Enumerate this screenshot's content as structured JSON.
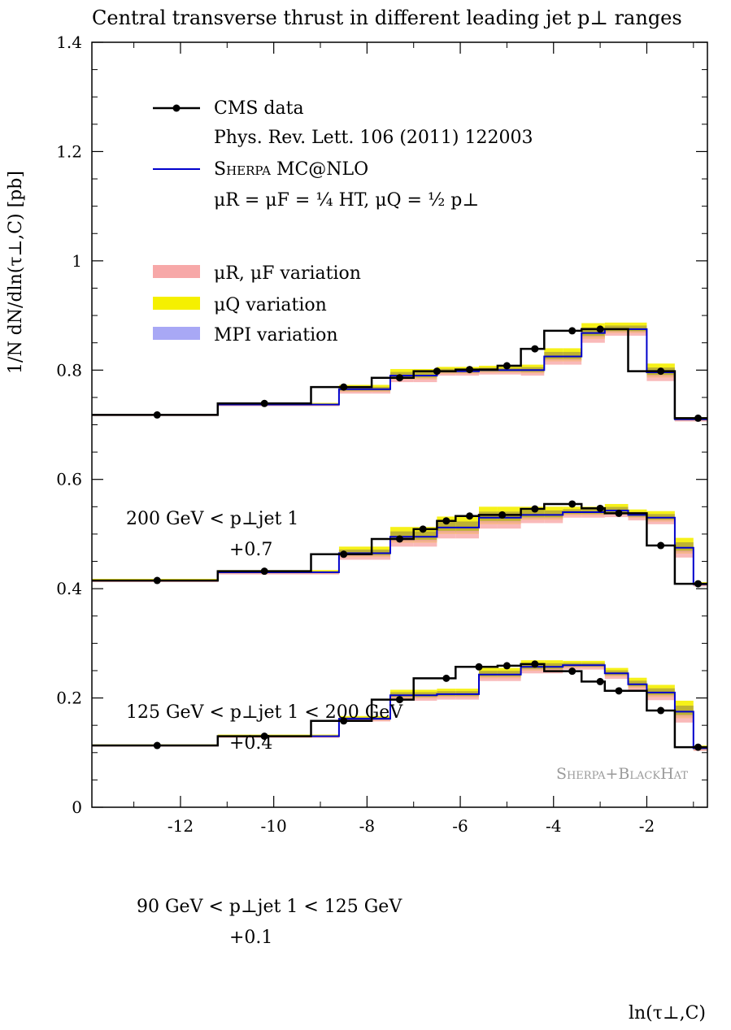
{
  "chart_data": {
    "type": "line",
    "title": "Central transverse thrust in different leading jet p⊥ ranges",
    "xlabel": "ln(τ⊥,C)",
    "ylabel": "1/N dN/dln(τ⊥,C) [pb]",
    "xlim": [
      -13.9,
      -0.7
    ],
    "ylim": [
      0,
      1.4
    ],
    "x_ticks": [
      -12,
      -10,
      -8,
      -6,
      -4,
      -2
    ],
    "x_tick_labels": [
      "-12",
      "-10",
      "-8",
      "-6",
      "-4",
      "-2"
    ],
    "y_ticks": [
      0,
      0.2,
      0.4,
      0.6,
      0.8,
      1,
      1.2,
      1.4
    ],
    "y_tick_labels": [
      "0",
      "0.2",
      "0.4",
      "0.6",
      "0.8",
      "1",
      "1.2",
      "1.4"
    ],
    "bin_edges": [
      -13.9,
      -11.2,
      -9.2,
      -8.6,
      -7.9,
      -7.5,
      -7.0,
      -6.5,
      -6.1,
      -5.6,
      -5.2,
      -4.7,
      -4.2,
      -3.8,
      -3.4,
      -2.9,
      -2.4,
      -2.0,
      -1.4,
      -1.0,
      -0.7
    ],
    "legend": {
      "data_label": "CMS data",
      "data_sub": "Phys. Rev. Lett. 106 (2011) 122003",
      "mc_label": "Sherpa MC@NLO",
      "mc_sub": "μR = μF = ¼ HT,   μQ = ½ p⊥",
      "band_mu_rf": "μR, μF variation",
      "band_mu_q": "μQ variation",
      "band_mpi": "MPI variation"
    },
    "watermark": "Sherpa+BlackHat",
    "colors": {
      "data": "#000000",
      "mc": "#0000cc",
      "band_mu_rf": "#f7a8a8",
      "band_mu_q": "#f5f000",
      "band_mpi": "#a8a8f5",
      "band_overlap": "#a09040"
    },
    "series": [
      {
        "name": "200 GeV < p⊥jet 1",
        "offset_label": "+0.7",
        "data": {
          "x": [
            -12.5,
            -10.2,
            -8.5,
            -7.3,
            -6.5,
            -5.8,
            -5.0,
            -4.4,
            -3.6,
            -3.0,
            -1.7,
            -0.9
          ],
          "y": [
            0.718,
            0.739,
            0.769,
            0.786,
            0.798,
            0.801,
            0.808,
            0.839,
            0.872,
            0.875,
            0.798,
            0.712
          ]
        },
        "mc_values": [
          0.718,
          0.737,
          0.737,
          0.765,
          0.765,
          0.79,
          0.79,
          0.798,
          0.798,
          0.8,
          0.8,
          0.8,
          0.825,
          0.825,
          0.868,
          0.875,
          0.875,
          0.796,
          0.71,
          0.71
        ],
        "band_half_width": [
          0.002,
          0.003,
          0.003,
          0.008,
          0.008,
          0.012,
          0.012,
          0.008,
          0.008,
          0.008,
          0.008,
          0.01,
          0.015,
          0.015,
          0.018,
          0.012,
          0.012,
          0.016,
          0.004,
          0.004
        ]
      },
      {
        "name": "125 GeV < p⊥jet 1 < 200 GeV",
        "offset_label": "+0.4",
        "data": {
          "x": [
            -12.5,
            -10.2,
            -8.5,
            -7.3,
            -6.8,
            -6.3,
            -5.8,
            -5.1,
            -4.4,
            -3.6,
            -3.0,
            -2.6,
            -1.7,
            -0.9
          ],
          "y": [
            0.415,
            0.432,
            0.463,
            0.491,
            0.509,
            0.524,
            0.533,
            0.535,
            0.546,
            0.555,
            0.547,
            0.538,
            0.479,
            0.409
          ]
        },
        "mc_values": [
          0.415,
          0.43,
          0.43,
          0.465,
          0.465,
          0.495,
          0.495,
          0.512,
          0.512,
          0.53,
          0.53,
          0.535,
          0.535,
          0.54,
          0.54,
          0.543,
          0.535,
          0.53,
          0.475,
          0.408
        ],
        "band_half_width": [
          0.003,
          0.004,
          0.004,
          0.012,
          0.012,
          0.018,
          0.018,
          0.02,
          0.02,
          0.02,
          0.02,
          0.015,
          0.015,
          0.01,
          0.01,
          0.012,
          0.01,
          0.012,
          0.018,
          0.004
        ]
      },
      {
        "name": "90 GeV < p⊥jet 1 < 125 GeV",
        "offset_label": "+0.1",
        "data": {
          "x": [
            -12.5,
            -10.2,
            -8.5,
            -7.3,
            -6.3,
            -5.6,
            -5.0,
            -4.4,
            -3.6,
            -3.0,
            -2.6,
            -1.7,
            -0.9
          ],
          "y": [
            0.113,
            0.13,
            0.158,
            0.197,
            0.236,
            0.257,
            0.259,
            0.262,
            0.249,
            0.23,
            0.213,
            0.177,
            0.11
          ]
        },
        "mc_values": [
          0.113,
          0.13,
          0.13,
          0.162,
          0.162,
          0.205,
          0.205,
          0.207,
          0.207,
          0.243,
          0.243,
          0.257,
          0.257,
          0.26,
          0.26,
          0.245,
          0.225,
          0.21,
          0.175,
          0.108
        ],
        "band_half_width": [
          0.002,
          0.003,
          0.003,
          0.005,
          0.005,
          0.01,
          0.01,
          0.01,
          0.01,
          0.012,
          0.012,
          0.012,
          0.012,
          0.008,
          0.008,
          0.01,
          0.012,
          0.014,
          0.02,
          0.005
        ]
      }
    ]
  }
}
